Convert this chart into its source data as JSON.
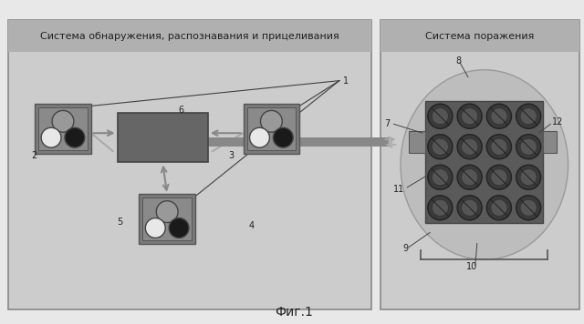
{
  "bg_color": "#d8d8d8",
  "left_panel_color": "#c8c8c8",
  "right_panel_color": "#c8c8c8",
  "header_color": "#a0a0a0",
  "box_color": "#808080",
  "box_inner_color": "#909090",
  "circle_gray": "#888888",
  "circle_white": "#f0f0f0",
  "circle_black": "#1a1a1a",
  "center_box_color": "#707070",
  "left_title": "Система обнаружения, распознавания и прицеливания",
  "right_title": "Система поражения",
  "caption": "Фиг.1",
  "arrow_color": "#909090",
  "line_color": "#404040",
  "tube_color": "#808080",
  "ellipse_color": "#b0b0b0",
  "dark_circle_color": "#3a3a3a",
  "grid_bg_color": "#606060"
}
